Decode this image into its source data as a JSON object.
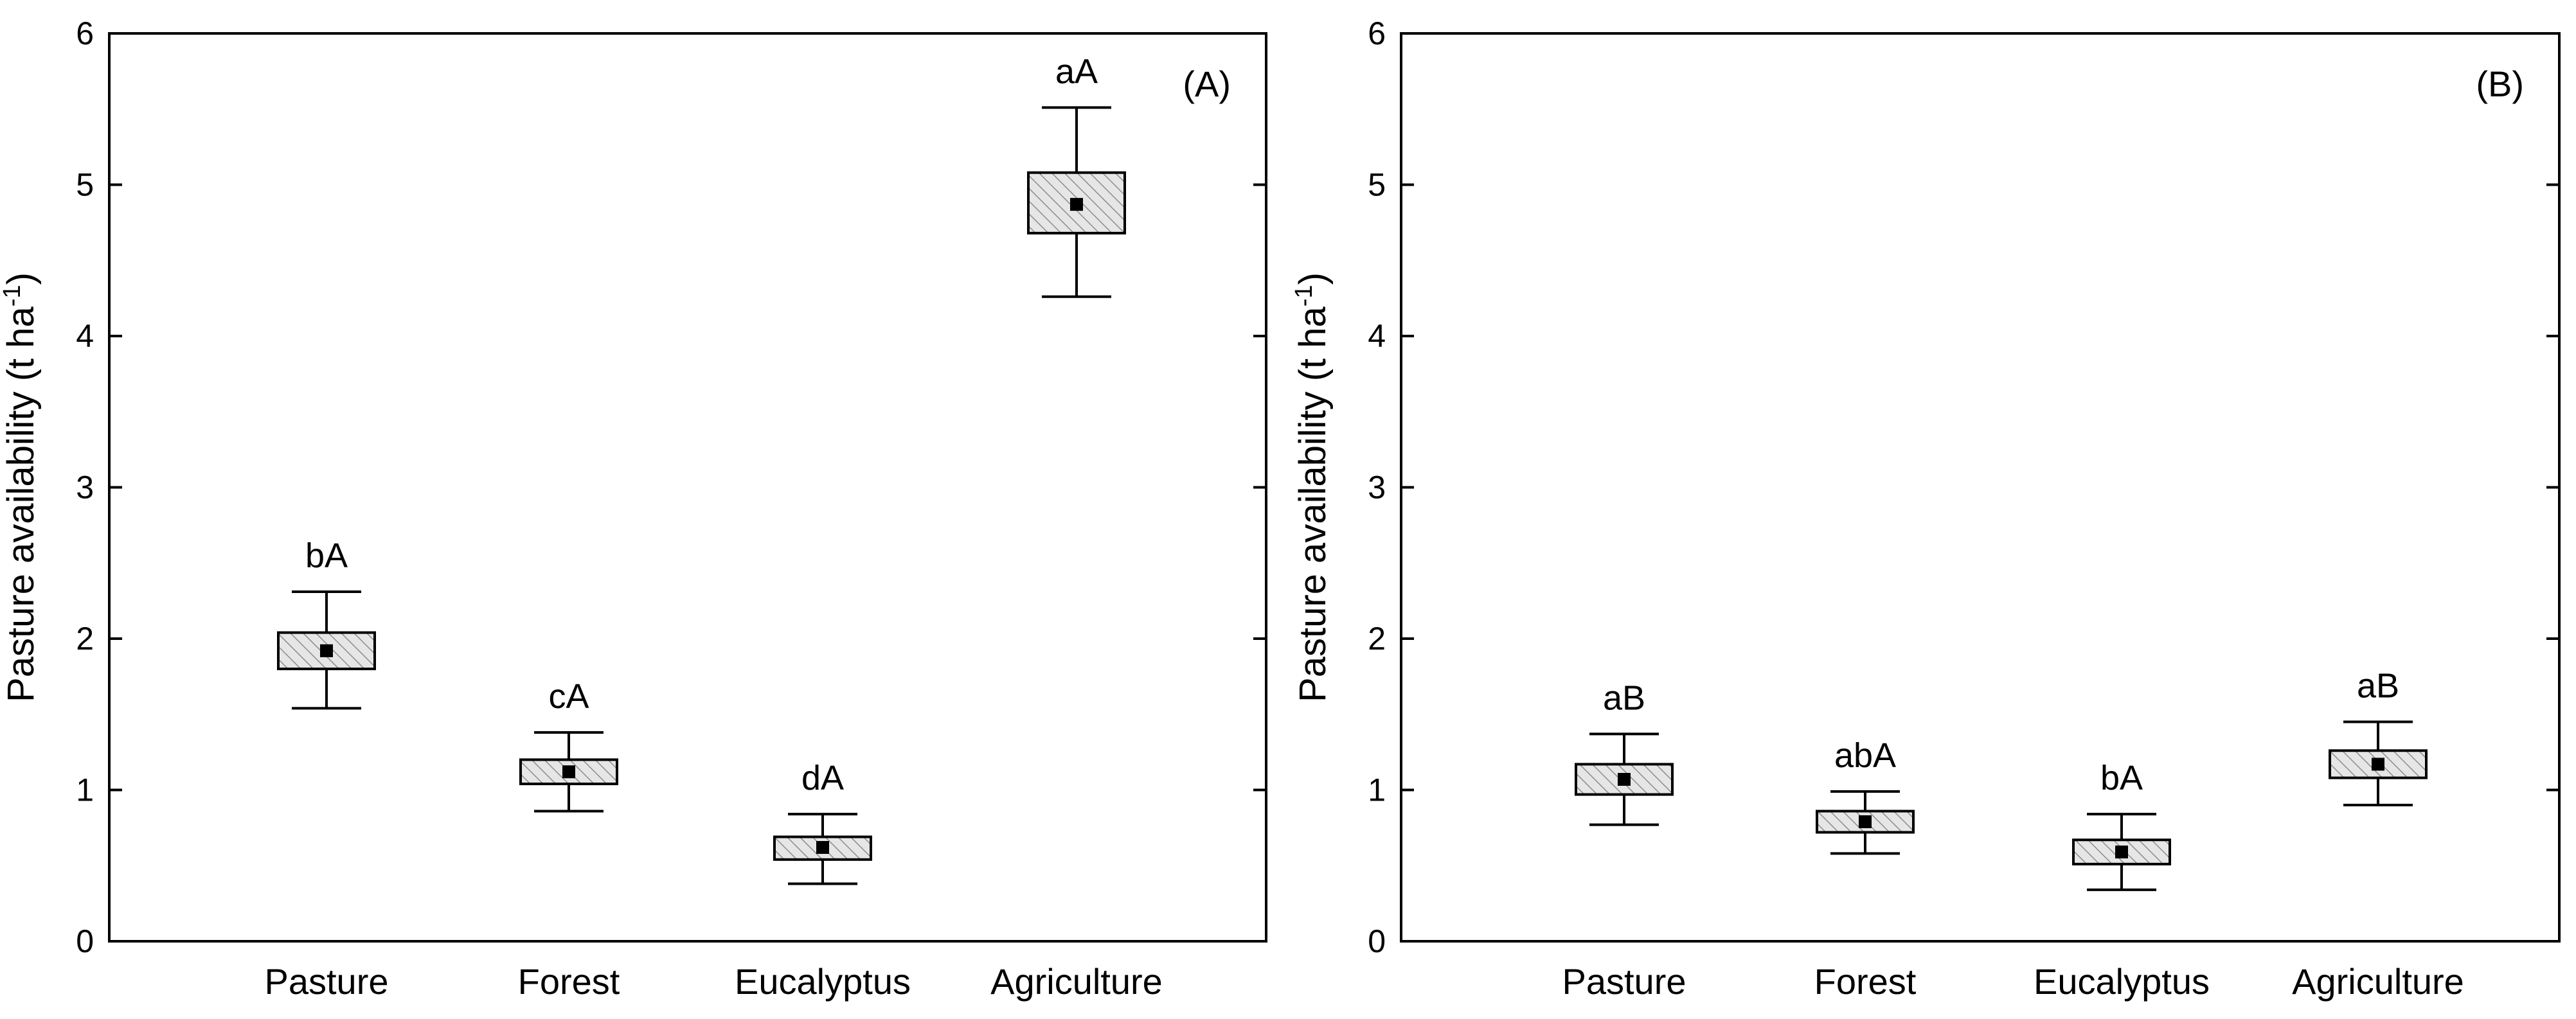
{
  "chart_data": [
    {
      "type": "box",
      "panel_label": "(A)",
      "ylabel": "Pasture availability (t ha",
      "ylabel_unit_sup": "-1",
      "ylabel_close": ")",
      "ylim": [
        0,
        6
      ],
      "yticks": [
        "0",
        "1",
        "2",
        "3",
        "4",
        "5",
        "6"
      ],
      "categories": [
        "Pasture",
        "Forest",
        "Eucalyptus",
        "Agriculture"
      ],
      "mean": [
        1.92,
        1.12,
        0.62,
        4.87
      ],
      "box_low": [
        1.8,
        1.04,
        0.54,
        4.68
      ],
      "box_high": [
        2.04,
        1.2,
        0.69,
        5.08
      ],
      "whisker_low": [
        1.54,
        0.86,
        0.38,
        4.26
      ],
      "whisker_high": [
        2.31,
        1.38,
        0.84,
        5.51
      ],
      "letters": [
        "bA",
        "cA",
        "dA",
        "aA"
      ]
    },
    {
      "type": "box",
      "panel_label": "(B)",
      "ylabel": "Pasture availability (t ha",
      "ylabel_unit_sup": "-1",
      "ylabel_close": ")",
      "ylim": [
        0,
        6
      ],
      "yticks": [
        "0",
        "1",
        "2",
        "3",
        "4",
        "5",
        "6"
      ],
      "categories": [
        "Pasture",
        "Forest",
        "Eucalyptus",
        "Agriculture"
      ],
      "mean": [
        1.07,
        0.79,
        0.59,
        1.17
      ],
      "box_low": [
        0.97,
        0.72,
        0.51,
        1.08
      ],
      "box_high": [
        1.17,
        0.86,
        0.67,
        1.26
      ],
      "whisker_low": [
        0.77,
        0.58,
        0.34,
        0.9
      ],
      "whisker_high": [
        1.37,
        0.99,
        0.84,
        1.45
      ],
      "letters": [
        "aB",
        "abA",
        "bA",
        "aB"
      ]
    }
  ],
  "colors": {
    "box_fill": "#e6e6e6",
    "hatch": "#8c8c8c",
    "axis": "#000000"
  }
}
